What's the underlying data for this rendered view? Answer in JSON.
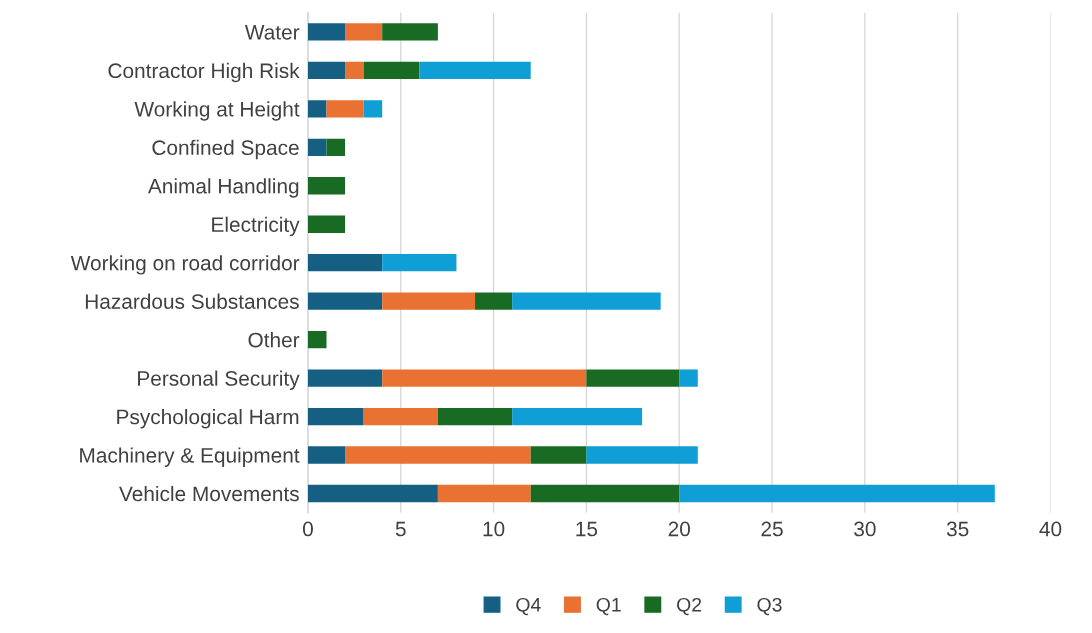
{
  "chart_data": {
    "type": "bar",
    "orientation": "horizontal",
    "stacked": true,
    "categories": [
      "Water",
      "Contractor High Risk",
      "Working at Height",
      "Confined Space",
      "Animal Handling",
      "Electricity",
      "Working on road corridor",
      "Hazardous Substances",
      "Other",
      "Personal Security",
      "Psychological Harm",
      "Machinery & Equipment",
      "Vehicle Movements"
    ],
    "series": [
      {
        "name": "Q4",
        "color": "#156082",
        "values": [
          2,
          2,
          1,
          1,
          0,
          0,
          4,
          4,
          0,
          4,
          3,
          2,
          7
        ]
      },
      {
        "name": "Q1",
        "color": "#e97132",
        "values": [
          2,
          1,
          2,
          0,
          0,
          0,
          0,
          5,
          0,
          11,
          4,
          10,
          5
        ]
      },
      {
        "name": "Q2",
        "color": "#196b24",
        "values": [
          3,
          3,
          0,
          1,
          2,
          2,
          0,
          2,
          1,
          5,
          4,
          3,
          8
        ]
      },
      {
        "name": "Q3",
        "color": "#0f9ed5",
        "values": [
          0,
          6,
          1,
          0,
          0,
          0,
          4,
          8,
          0,
          1,
          7,
          6,
          17
        ]
      }
    ],
    "xlim": [
      0,
      40
    ],
    "xticks": [
      0,
      5,
      10,
      15,
      20,
      25,
      30,
      35,
      40
    ],
    "grid": "x",
    "legend": "bottom"
  }
}
